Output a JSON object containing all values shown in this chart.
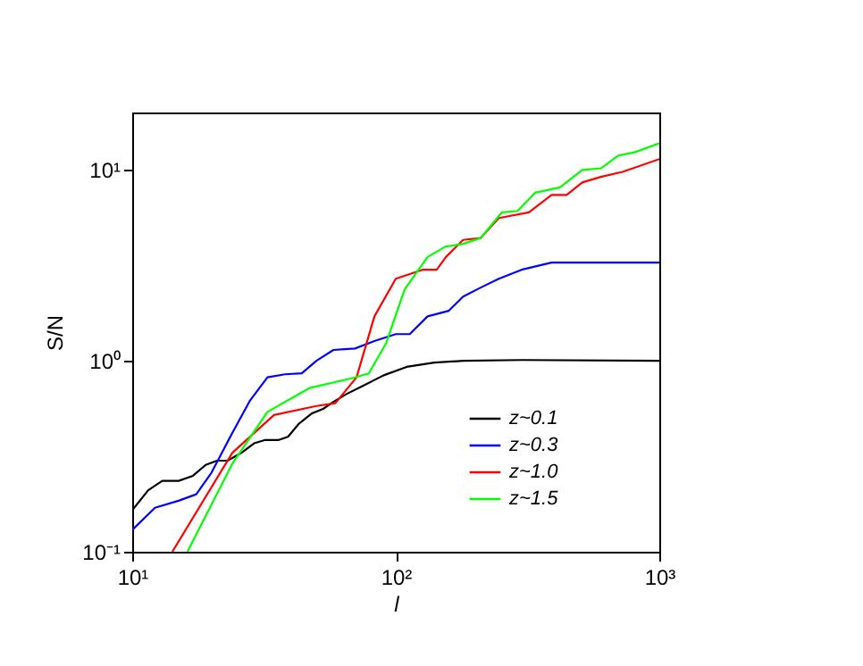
{
  "chart_data": {
    "type": "line",
    "xlabel": "l",
    "ylabel": "S/N",
    "log": "xy",
    "grid": false,
    "legend": "bottom right",
    "line_style": "solid",
    "marker": "none",
    "xlim": [
      10,
      1000
    ],
    "ylim": [
      0.1,
      20
    ],
    "xticks": [
      {
        "value": 10,
        "label": "10¹"
      },
      {
        "value": 100,
        "label": "10²"
      },
      {
        "value": 1000,
        "label": "10³"
      }
    ],
    "yticks": [
      {
        "value": 0.1,
        "label": "10⁻¹"
      },
      {
        "value": 1,
        "label": "10⁰"
      },
      {
        "value": 10,
        "label": "10¹"
      }
    ],
    "series": [
      {
        "name": "z~0.1",
        "color": "#000000",
        "x": [
          10,
          11.5,
          13,
          15,
          17,
          19,
          21,
          23,
          26,
          29,
          32,
          36,
          39,
          43,
          48,
          53,
          58,
          65,
          75,
          90,
          110,
          140,
          180,
          300,
          1000
        ],
        "values": [
          0.165,
          0.21,
          0.235,
          0.235,
          0.25,
          0.285,
          0.3,
          0.3,
          0.33,
          0.37,
          0.385,
          0.385,
          0.4,
          0.47,
          0.53,
          0.56,
          0.61,
          0.67,
          0.74,
          0.84,
          0.93,
          0.98,
          1.0,
          1.01,
          1.0
        ]
      },
      {
        "name": "z~0.3",
        "color": "#0000ff",
        "x": [
          10,
          12.2,
          15,
          17.5,
          20,
          24,
          28,
          32.6,
          38,
          44,
          50,
          58,
          64,
          70,
          83,
          100,
          113,
          132,
          159,
          180,
          210,
          246,
          300,
          390,
          600,
          1000
        ],
        "values": [
          0.13,
          0.17,
          0.185,
          0.2,
          0.26,
          0.42,
          0.62,
          0.82,
          0.85,
          0.86,
          1.0,
          1.14,
          1.15,
          1.16,
          1.27,
          1.38,
          1.38,
          1.71,
          1.83,
          2.17,
          2.42,
          2.69,
          3.0,
          3.27,
          3.27,
          3.27
        ]
      },
      {
        "name": "z~1.0",
        "color": "#ff0000",
        "x": [
          14.2,
          24,
          34.5,
          50,
          59,
          71,
          83,
          100,
          126,
          143,
          155,
          180,
          210,
          246,
          320,
          390,
          445,
          510,
          600,
          730,
          1000
        ],
        "values": [
          0.1,
          0.33,
          0.52,
          0.58,
          0.6,
          0.82,
          1.71,
          2.69,
          3.0,
          3.0,
          3.5,
          4.3,
          4.4,
          5.6,
          6.0,
          7.4,
          7.4,
          8.6,
          9.2,
          9.8,
          11.4
        ]
      },
      {
        "name": "z~1.5",
        "color": "#00ff00",
        "x": [
          16.2,
          24,
          32.6,
          47,
          68,
          79,
          92,
          108,
          132,
          154,
          180,
          210,
          253,
          290,
          338,
          420,
          510,
          600,
          700,
          810,
          1000
        ],
        "values": [
          0.1,
          0.29,
          0.54,
          0.72,
          0.81,
          0.86,
          1.24,
          2.36,
          3.5,
          3.96,
          4.1,
          4.4,
          6.0,
          6.1,
          7.6,
          8.1,
          10.0,
          10.2,
          11.9,
          12.4,
          13.8
        ]
      }
    ]
  }
}
